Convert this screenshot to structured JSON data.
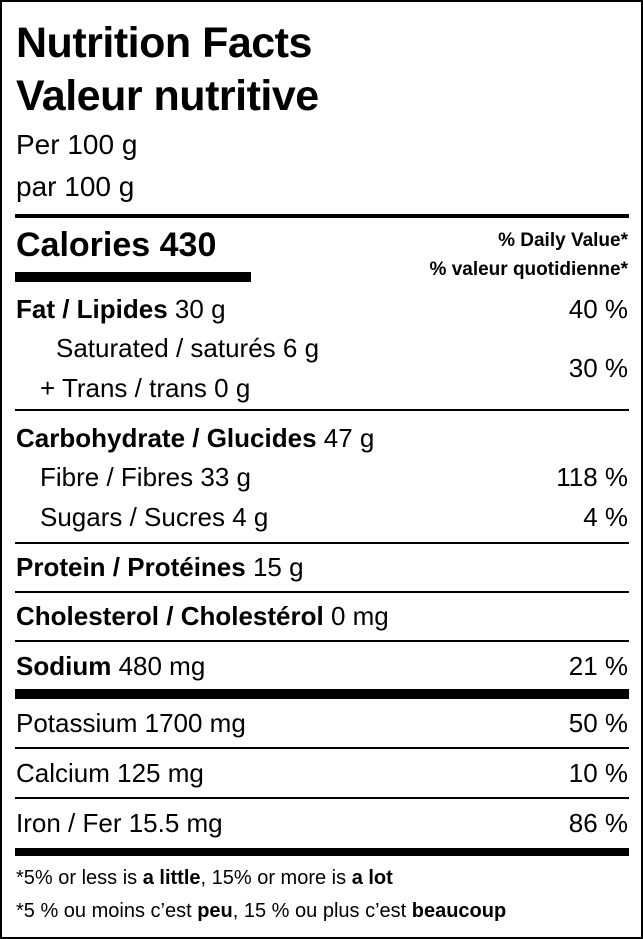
{
  "header": {
    "title_en": "Nutrition Facts",
    "title_fr": "Valeur nutritive",
    "per_en": "Per 100 g",
    "per_fr": "par 100 g"
  },
  "calories": {
    "label": "Calories",
    "value": "430"
  },
  "daily_value": {
    "en": "% Daily Value*",
    "fr": "% valeur quotidienne*"
  },
  "nutrients": {
    "fat": {
      "name": "Fat / Lipides",
      "amount": "30 g",
      "dv": "40 %"
    },
    "saturated": {
      "name": "Saturated / saturés 6 g"
    },
    "trans": {
      "name": "+ Trans / trans 0 g",
      "dv": "30 %"
    },
    "carbohydrate": {
      "name": "Carbohydrate / Glucides",
      "amount": "47 g"
    },
    "fibre": {
      "name": "Fibre / Fibres 33 g",
      "dv": "118 %"
    },
    "sugars": {
      "name": "Sugars / Sucres 4 g",
      "dv": "4 %"
    },
    "protein": {
      "name": "Protein / Protéines",
      "amount": "15 g"
    },
    "cholesterol": {
      "name": "Cholesterol / Cholestérol",
      "amount": "0 mg"
    },
    "sodium": {
      "name": "Sodium",
      "amount": "480 mg",
      "dv": "21 %"
    },
    "potassium": {
      "name": "Potassium 1700 mg",
      "dv": "50 %"
    },
    "calcium": {
      "name": "Calcium 125 mg",
      "dv": "10 %"
    },
    "iron": {
      "name": "Iron / Fer 15.5 mg",
      "dv": "86 %"
    }
  },
  "footnote": {
    "en": {
      "a": "*5% or less is ",
      "b": "a little",
      "c": ", 15% or more is ",
      "d": "a lot"
    },
    "fr": {
      "a": "*5 % ou moins c’est ",
      "b": "peu",
      "c": ", 15 % ou plus c’est ",
      "d": "beaucoup"
    }
  }
}
